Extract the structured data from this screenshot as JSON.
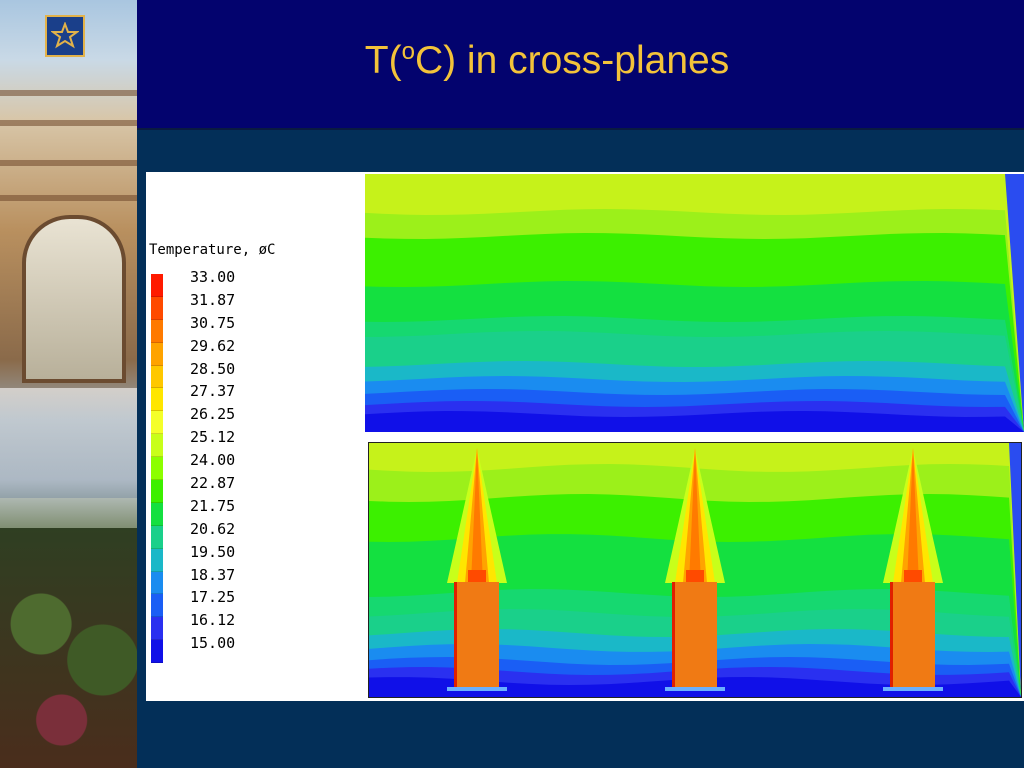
{
  "slide": {
    "title_prefix": "T(",
    "title_sup": "o",
    "title_suffix": "C)  in cross-planes"
  },
  "legend": {
    "title": "Temperature, øC",
    "values": [
      "33.00",
      "31.87",
      "30.75",
      "29.62",
      "28.50",
      "27.37",
      "26.25",
      "25.12",
      "24.00",
      "22.87",
      "21.75",
      "20.62",
      "19.50",
      "18.37",
      "17.25",
      "16.12",
      "15.00"
    ],
    "colors": [
      "#ff1a00",
      "#ff4a00",
      "#ff7a00",
      "#ffa300",
      "#ffc800",
      "#ffe600",
      "#f4ff2a",
      "#c8ff1a",
      "#8cff00",
      "#3cf000",
      "#14e040",
      "#1ad08a",
      "#1ab8c8",
      "#1a8cf0",
      "#1a5ef5",
      "#2a30f0",
      "#1010e8"
    ]
  },
  "plots": {
    "top_bands": [
      "#c6f21a",
      "#9cf01a",
      "#3cf000",
      "#14e040",
      "#16d870",
      "#1ad08a",
      "#1ab8c8",
      "#1a8cf0",
      "#1a5ef5",
      "#2a30f0",
      "#1010e8"
    ],
    "bottom_bands": [
      "#c6f21a",
      "#9cf01a",
      "#3cf000",
      "#14e040",
      "#16d870",
      "#1ad08a",
      "#1ab8c8",
      "#1a8cf0",
      "#1a5ef5",
      "#2a30f0",
      "#1010e8"
    ],
    "heater_color": "#f07a14",
    "heater_count": 3
  }
}
